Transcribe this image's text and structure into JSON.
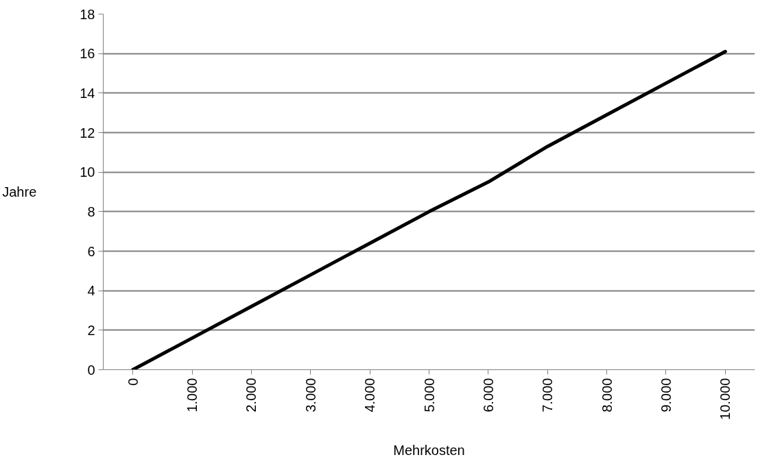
{
  "chart_data": {
    "type": "line",
    "xlabel": "Mehrkosten",
    "ylabel": "Jahre",
    "categories": [
      "0",
      "1.000",
      "2.000",
      "3.000",
      "4.000",
      "5.000",
      "6.000",
      "7.000",
      "8.000",
      "9.000",
      "10.000"
    ],
    "series": [
      {
        "color": "#000000",
        "values": [
          0,
          1.6,
          3.2,
          4.8,
          6.4,
          8.0,
          9.5,
          11.3,
          12.9,
          14.5,
          16.1
        ]
      }
    ],
    "ylim": [
      0,
      18
    ],
    "yticks": [
      0,
      2,
      4,
      6,
      8,
      10,
      12,
      14,
      16,
      18
    ],
    "grid": "y",
    "marker": "none",
    "line_style": "solid"
  }
}
